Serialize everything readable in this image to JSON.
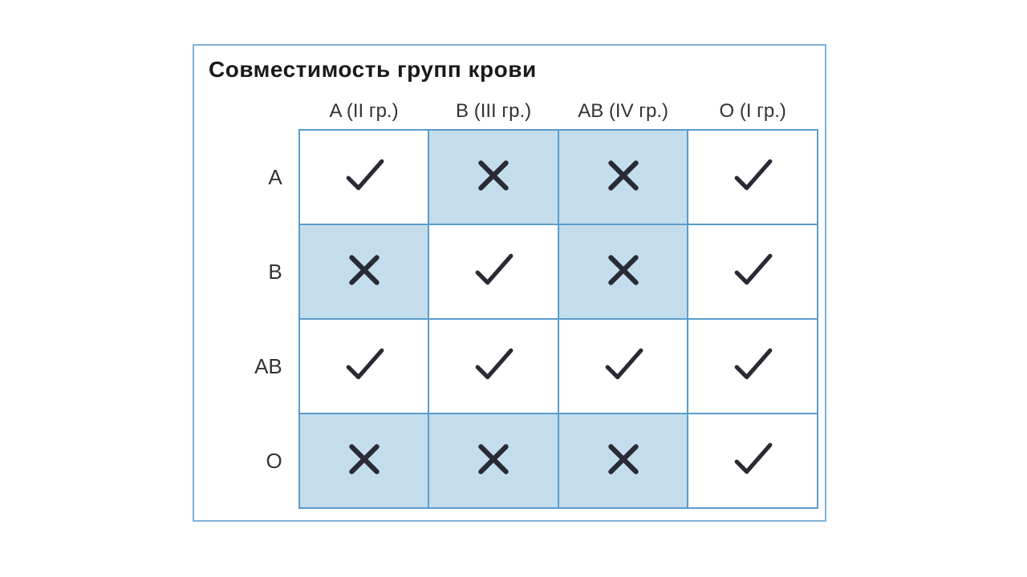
{
  "type": "table",
  "title": "Совместимость групп крови",
  "title_fontsize": 28,
  "title_color": "#1a1a1a",
  "header_fontsize": 24,
  "header_color": "#333333",
  "rowlabel_fontsize": 26,
  "rowlabel_color": "#333333",
  "border_color": "#5a9ccc",
  "outer_border_color": "#7db0d8",
  "cell_check_bg": "#ffffff",
  "cell_cross_bg": "#c3ddec",
  "mark_color": "#2a2a35",
  "mark_stroke_width": 5,
  "columns": [
    "A (II гр.)",
    "B (III гр.)",
    "AB (IV гр.)",
    "O (I гр.)"
  ],
  "row_labels": [
    "A",
    "B",
    "AB",
    "O"
  ],
  "rows": [
    [
      "check",
      "cross",
      "cross",
      "check"
    ],
    [
      "cross",
      "check",
      "cross",
      "check"
    ],
    [
      "check",
      "check",
      "check",
      "check"
    ],
    [
      "cross",
      "cross",
      "cross",
      "check"
    ]
  ]
}
